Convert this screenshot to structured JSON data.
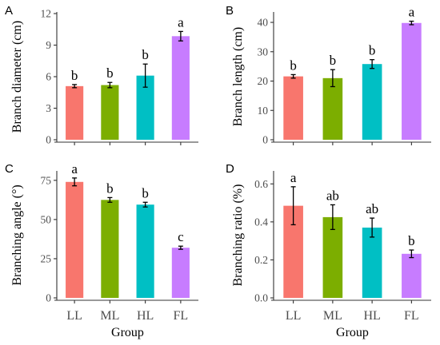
{
  "colors": {
    "LL": "#f8766d",
    "ML": "#7cae00",
    "HL": "#00bfc4",
    "FL": "#c77cff",
    "axis": "#333333",
    "errorbar": "#000000"
  },
  "chart_data": [
    {
      "panel": "A",
      "type": "bar",
      "categories": [
        "LL",
        "ML",
        "HL",
        "FL"
      ],
      "values": [
        5.1,
        5.2,
        6.1,
        9.85
      ],
      "errors": [
        0.15,
        0.25,
        1.1,
        0.45
      ],
      "significance": [
        "b",
        "b",
        "b",
        "a"
      ],
      "ylabel": "Branch diameter (cm)",
      "xlabel": "",
      "ylim": [
        0,
        12
      ],
      "yticks": [
        0,
        3,
        6,
        9,
        12
      ],
      "grid": false
    },
    {
      "panel": "B",
      "type": "bar",
      "categories": [
        "LL",
        "ML",
        "HL",
        "FL"
      ],
      "values": [
        21.6,
        21.0,
        25.8,
        39.8
      ],
      "errors": [
        0.6,
        2.9,
        1.5,
        0.6
      ],
      "significance": [
        "b",
        "b",
        "b",
        "a"
      ],
      "ylabel": "Branch length (cm)",
      "xlabel": "",
      "ylim": [
        0,
        43
      ],
      "yticks": [
        0,
        10,
        20,
        30,
        40
      ],
      "grid": false
    },
    {
      "panel": "C",
      "type": "bar",
      "categories": [
        "LL",
        "ML",
        "HL",
        "FL"
      ],
      "values": [
        74.0,
        62.5,
        59.5,
        32.0
      ],
      "errors": [
        2.5,
        1.5,
        1.5,
        1.0
      ],
      "significance": [
        "a",
        "b",
        "b",
        "c"
      ],
      "ylabel": "Branching angle (°)",
      "xlabel": "Group",
      "ylim": [
        0,
        80
      ],
      "yticks": [
        0,
        25,
        50,
        75
      ],
      "grid": false
    },
    {
      "panel": "D",
      "type": "bar",
      "categories": [
        "LL",
        "ML",
        "HL",
        "FL"
      ],
      "values": [
        0.485,
        0.425,
        0.37,
        0.232
      ],
      "errors": [
        0.1,
        0.065,
        0.05,
        0.02
      ],
      "significance": [
        "a",
        "ab",
        "ab",
        "b"
      ],
      "ylabel": "Branching ratio (%)",
      "xlabel": "Group",
      "ylim": [
        0,
        0.66
      ],
      "yticks": [
        0.0,
        0.2,
        0.4,
        0.6
      ],
      "ytick_labels": [
        "0.0",
        "0.2",
        "0.4",
        "0.6"
      ],
      "grid": false
    }
  ]
}
